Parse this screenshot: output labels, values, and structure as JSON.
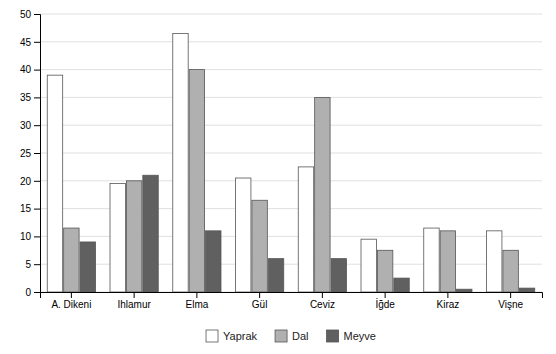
{
  "chart_data": {
    "type": "bar",
    "categories": [
      "A. Dikeni",
      "Ihlamur",
      "Elma",
      "Gül",
      "Ceviz",
      "İğde",
      "Kiraz",
      "Vişne"
    ],
    "series": [
      {
        "name": "Yaprak",
        "color": "#ffffff",
        "values": [
          39,
          19.5,
          46.5,
          20.5,
          22.5,
          9.5,
          11.5,
          11
        ]
      },
      {
        "name": "Dal",
        "color": "#b0b0b0",
        "values": [
          11.5,
          20,
          40,
          16.5,
          35,
          7.5,
          11,
          7.5
        ]
      },
      {
        "name": "Meyve",
        "color": "#606060",
        "values": [
          9,
          21,
          11,
          6,
          6,
          2.5,
          0.5,
          0.7
        ]
      }
    ],
    "ylim": [
      0,
      50
    ],
    "yticks": [
      0,
      5,
      10,
      15,
      20,
      25,
      30,
      35,
      40,
      45,
      50
    ],
    "grid": true,
    "legend": "bottom"
  }
}
